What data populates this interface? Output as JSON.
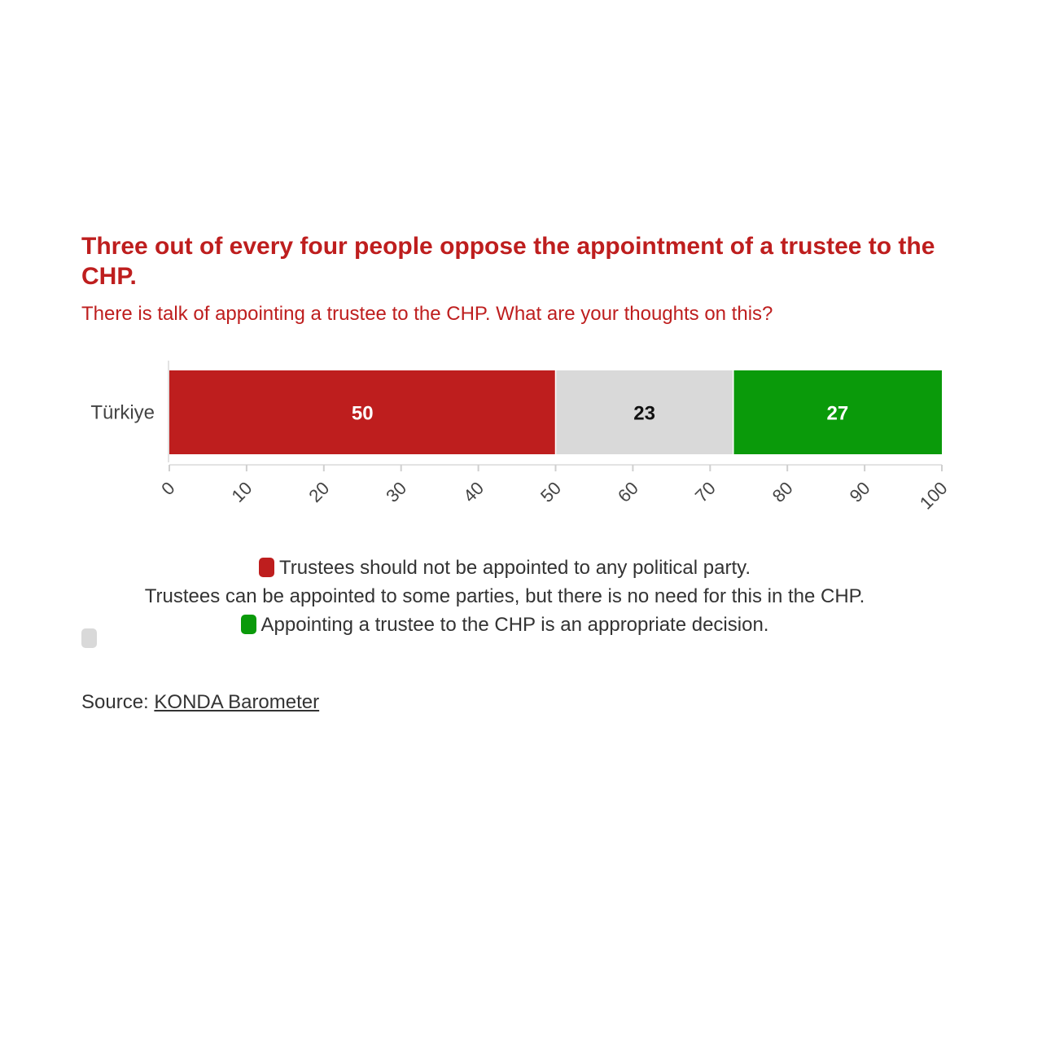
{
  "title": "Three out of every four people oppose the appointment of a trustee to the CHP.",
  "subtitle": "There is talk of appointing a trustee to the CHP. What are your thoughts on this?",
  "colors": {
    "accent": "#be1e1e",
    "series_1": "#be1e1e",
    "series_2": "#d9d9d9",
    "series_3": "#0a9a0a"
  },
  "legend": [
    {
      "label": "Trustees should not be appointed to any political party.",
      "color": "#be1e1e"
    },
    {
      "label": "Trustees can be appointed to some parties, but there is no need for this in the CHP.",
      "color": "#d9d9d9"
    },
    {
      "label": "Appointing a trustee to the CHP is an appropriate decision.",
      "color": "#0a9a0a"
    }
  ],
  "source": {
    "prefix": "Source: ",
    "link_text": "KONDA Barometer"
  },
  "chart_data": {
    "type": "bar",
    "orientation": "horizontal",
    "stacked": true,
    "categories": [
      "Türkiye"
    ],
    "series": [
      {
        "name": "Trustees should not be appointed to any political party.",
        "values": [
          50
        ],
        "color": "#be1e1e",
        "label_color": "#ffffff"
      },
      {
        "name": "Trustees can be appointed to some parties, but there is no need for this in the CHP.",
        "values": [
          23
        ],
        "color": "#d9d9d9",
        "label_color": "#111111"
      },
      {
        "name": "Appointing a trustee to the CHP is an appropriate decision.",
        "values": [
          27
        ],
        "color": "#0a9a0a",
        "label_color": "#ffffff"
      }
    ],
    "xlim": [
      0,
      100
    ],
    "xticks": [
      0,
      10,
      20,
      30,
      40,
      50,
      60,
      70,
      80,
      90,
      100
    ],
    "grid": false,
    "legend_position": "bottom"
  }
}
